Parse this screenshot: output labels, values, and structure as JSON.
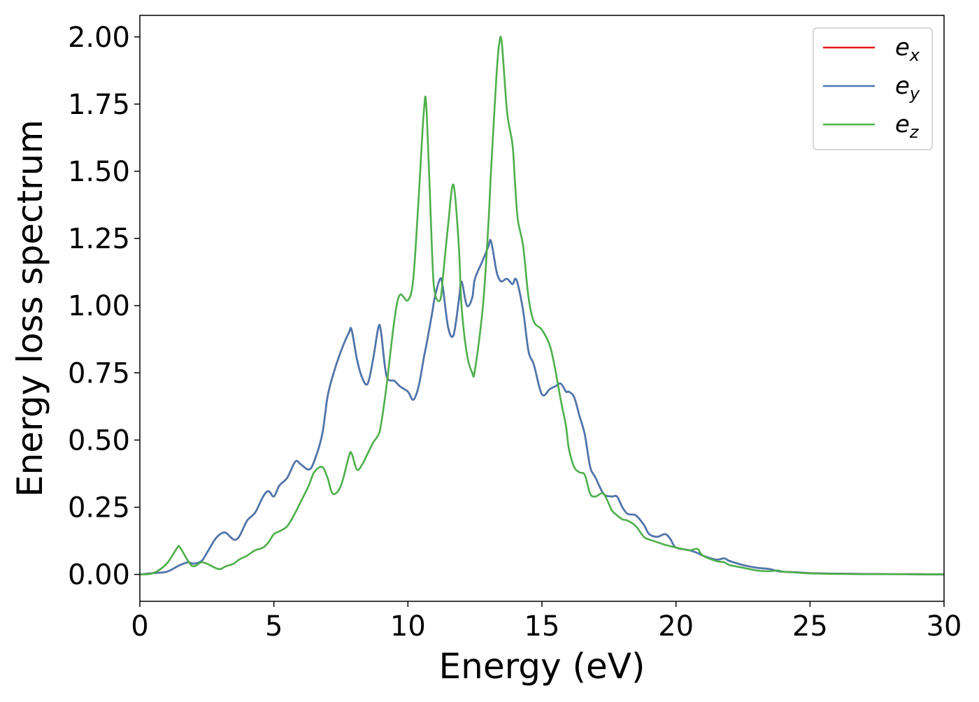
{
  "chart_data": {
    "type": "line",
    "title": "",
    "xlabel": "Energy (eV)",
    "ylabel": "Energy loss spectrum",
    "xlim": [
      0,
      30
    ],
    "ylim": [
      -0.1,
      2.08
    ],
    "xticks": [
      0,
      5,
      10,
      15,
      20,
      25,
      30
    ],
    "yticks": [
      0.0,
      0.25,
      0.5,
      0.75,
      1.0,
      1.25,
      1.5,
      1.75,
      2.0
    ],
    "xtick_labels": [
      "0",
      "5",
      "10",
      "15",
      "20",
      "25",
      "30"
    ],
    "ytick_labels": [
      "0.00",
      "0.25",
      "0.50",
      "0.75",
      "1.00",
      "1.25",
      "1.50",
      "1.75",
      "2.00"
    ],
    "grid": false,
    "legend_position": "top-right",
    "x": [
      0,
      0.5,
      1,
      1.4,
      1.5,
      1.8,
      2,
      2.3,
      2.5,
      2.8,
      3.0,
      3.2,
      3.5,
      3.7,
      4.0,
      4.3,
      4.6,
      4.8,
      5.0,
      5.2,
      5.5,
      5.8,
      6.0,
      6.3,
      6.5,
      6.8,
      7.0,
      7.2,
      7.5,
      7.8,
      7.9,
      8.1,
      8.3,
      8.5,
      8.7,
      8.9,
      9.0,
      9.2,
      9.5,
      9.7,
      10.0,
      10.2,
      10.4,
      10.6,
      10.7,
      10.9,
      11.0,
      11.2,
      11.3,
      11.5,
      11.7,
      11.9,
      12.0,
      12.2,
      12.4,
      12.5,
      12.8,
      13.0,
      13.1,
      13.3,
      13.4,
      13.5,
      13.7,
      13.9,
      14.0,
      14.1,
      14.3,
      14.5,
      14.7,
      15.0,
      15.3,
      15.5,
      15.7,
      15.9,
      16.0,
      16.2,
      16.4,
      16.6,
      16.8,
      17.0,
      17.3,
      17.6,
      17.8,
      18.0,
      18.2,
      18.5,
      18.8,
      19.0,
      19.3,
      19.6,
      19.8,
      20.0,
      20.5,
      20.8,
      21.0,
      21.5,
      21.8,
      22.0,
      22.5,
      23.0,
      23.5,
      23.8,
      24.0,
      24.5,
      25.0,
      26.0,
      27.0,
      28.0,
      29.0,
      30.0
    ],
    "series": [
      {
        "name": "e",
        "subscript": "x",
        "color": "#e41a1c",
        "values": [
          0,
          0.005,
          0.01,
          0.03,
          0.035,
          0.045,
          0.04,
          0.05,
          0.08,
          0.13,
          0.15,
          0.155,
          0.13,
          0.14,
          0.2,
          0.23,
          0.29,
          0.31,
          0.29,
          0.33,
          0.36,
          0.42,
          0.41,
          0.39,
          0.42,
          0.52,
          0.66,
          0.74,
          0.83,
          0.9,
          0.91,
          0.8,
          0.73,
          0.71,
          0.8,
          0.92,
          0.9,
          0.74,
          0.72,
          0.7,
          0.68,
          0.65,
          0.7,
          0.81,
          0.86,
          0.97,
          1.03,
          1.1,
          1.07,
          0.92,
          0.89,
          1.02,
          1.09,
          1.0,
          1.03,
          1.1,
          1.17,
          1.22,
          1.24,
          1.13,
          1.1,
          1.09,
          1.1,
          1.08,
          1.1,
          1.08,
          0.98,
          0.83,
          0.78,
          0.67,
          0.69,
          0.7,
          0.71,
          0.68,
          0.68,
          0.66,
          0.59,
          0.52,
          0.4,
          0.36,
          0.3,
          0.29,
          0.29,
          0.25,
          0.225,
          0.22,
          0.185,
          0.15,
          0.14,
          0.15,
          0.13,
          0.1,
          0.09,
          0.08,
          0.07,
          0.055,
          0.06,
          0.05,
          0.035,
          0.025,
          0.02,
          0.012,
          0.01,
          0.008,
          0.005,
          0.003,
          0.002,
          0.001,
          0.001,
          0.0
        ]
      },
      {
        "name": "e",
        "subscript": "y",
        "color": "#4878b0",
        "values": [
          0,
          0.005,
          0.01,
          0.03,
          0.035,
          0.045,
          0.04,
          0.05,
          0.08,
          0.13,
          0.15,
          0.155,
          0.13,
          0.14,
          0.2,
          0.23,
          0.29,
          0.31,
          0.29,
          0.33,
          0.36,
          0.42,
          0.41,
          0.39,
          0.42,
          0.52,
          0.66,
          0.74,
          0.83,
          0.9,
          0.91,
          0.8,
          0.73,
          0.71,
          0.8,
          0.92,
          0.9,
          0.74,
          0.72,
          0.7,
          0.68,
          0.65,
          0.7,
          0.81,
          0.86,
          0.97,
          1.03,
          1.1,
          1.07,
          0.92,
          0.89,
          1.02,
          1.09,
          1.0,
          1.03,
          1.1,
          1.17,
          1.22,
          1.24,
          1.13,
          1.1,
          1.09,
          1.1,
          1.08,
          1.1,
          1.08,
          0.98,
          0.83,
          0.78,
          0.67,
          0.69,
          0.7,
          0.71,
          0.68,
          0.68,
          0.66,
          0.59,
          0.52,
          0.4,
          0.36,
          0.3,
          0.29,
          0.29,
          0.25,
          0.225,
          0.22,
          0.185,
          0.15,
          0.14,
          0.15,
          0.13,
          0.1,
          0.09,
          0.08,
          0.07,
          0.055,
          0.06,
          0.05,
          0.035,
          0.025,
          0.02,
          0.012,
          0.01,
          0.008,
          0.005,
          0.003,
          0.002,
          0.001,
          0.001,
          0.0
        ]
      },
      {
        "name": "e",
        "subscript": "z",
        "color": "#4daf4a",
        "values": [
          0,
          0.005,
          0.04,
          0.1,
          0.1,
          0.05,
          0.03,
          0.045,
          0.04,
          0.025,
          0.02,
          0.03,
          0.04,
          0.055,
          0.07,
          0.09,
          0.1,
          0.12,
          0.15,
          0.16,
          0.18,
          0.23,
          0.27,
          0.33,
          0.38,
          0.4,
          0.36,
          0.3,
          0.33,
          0.44,
          0.45,
          0.39,
          0.41,
          0.45,
          0.49,
          0.52,
          0.56,
          0.7,
          0.95,
          1.04,
          1.02,
          1.1,
          1.4,
          1.73,
          1.72,
          1.2,
          1.05,
          1.02,
          1.1,
          1.3,
          1.45,
          1.22,
          1.0,
          0.82,
          0.75,
          0.76,
          1.0,
          1.3,
          1.5,
          1.85,
          1.97,
          1.98,
          1.72,
          1.6,
          1.45,
          1.32,
          1.22,
          1.03,
          0.94,
          0.91,
          0.85,
          0.76,
          0.65,
          0.55,
          0.47,
          0.4,
          0.38,
          0.37,
          0.3,
          0.29,
          0.3,
          0.24,
          0.22,
          0.205,
          0.2,
          0.18,
          0.14,
          0.13,
          0.12,
          0.11,
          0.105,
          0.1,
          0.09,
          0.095,
          0.07,
          0.05,
          0.045,
          0.035,
          0.025,
          0.015,
          0.012,
          0.015,
          0.01,
          0.007,
          0.004,
          0.002,
          0.001,
          0.001,
          0.0,
          0.0
        ]
      }
    ]
  }
}
